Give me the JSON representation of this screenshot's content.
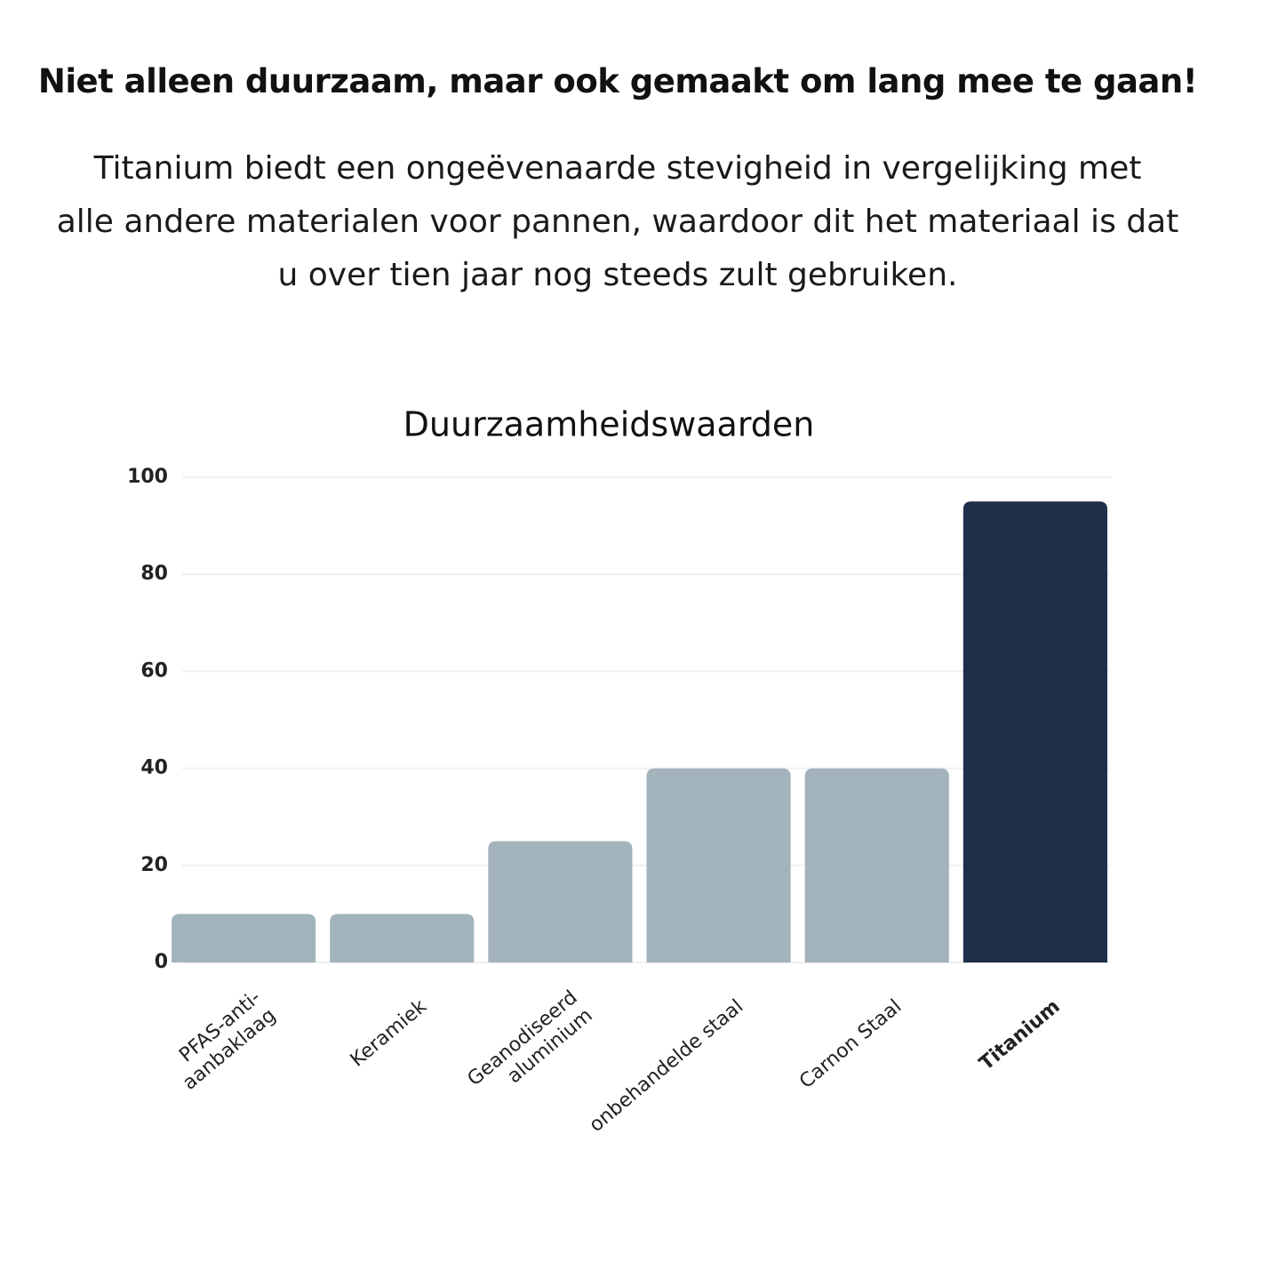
{
  "heading": "Niet alleen duurzaam, maar ook gemaakt om lang mee te gaan!",
  "paragraph_lines": [
    "Titanium biedt een ongeëvenaarde stevigheid in vergelijking met",
    "alle andere materialen voor pannen, waardoor dit het materiaal is dat",
    "u over tien jaar nog steeds zult gebruiken."
  ],
  "chart_data": {
    "type": "bar",
    "title": "Duurzaamheidswaarden",
    "categories": [
      "PFAS-anti-\naanbaklaag",
      "Keramiek",
      "Geanodiseerd\naluminium",
      "onbehandelde staal",
      "Carnon Staal",
      "Titanium"
    ],
    "values": [
      10,
      10,
      25,
      40,
      40,
      95
    ],
    "colors": [
      "#a3b3bc",
      "#a3b3bc",
      "#a3b3bc",
      "#a3b3bc",
      "#a3b3bc",
      "#1f2f4a"
    ],
    "highlight": 5,
    "ylim": [
      0,
      100
    ],
    "yticks": [
      0,
      20,
      40,
      60,
      80,
      100
    ],
    "grid": true
  }
}
